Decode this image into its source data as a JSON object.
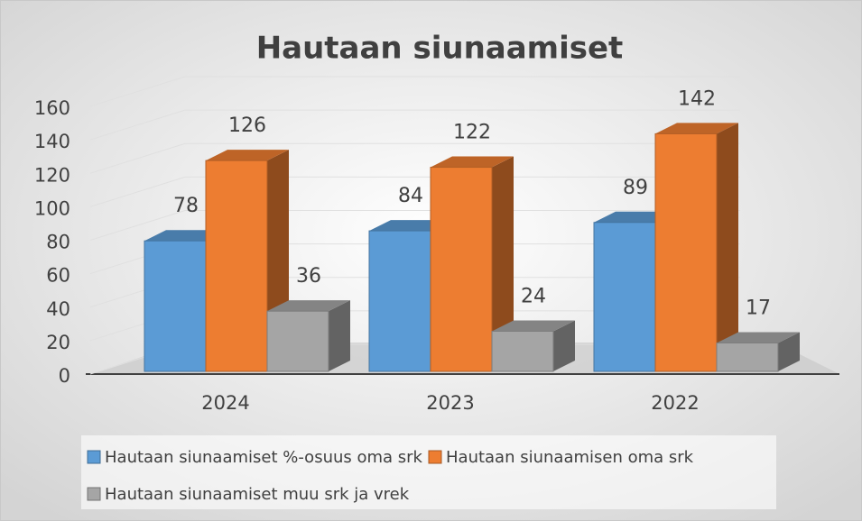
{
  "chart_data": {
    "type": "bar",
    "title": "Hautaan siunaamiset",
    "categories": [
      "2024",
      "2023",
      "2022"
    ],
    "series": [
      {
        "name": "Hautaan siunaamiset %-osuus oma srk",
        "color": "#5b9bd5",
        "values": [
          78,
          84,
          89
        ]
      },
      {
        "name": "Hautaan siunaamisen oma srk",
        "color": "#ed7d31",
        "values": [
          126,
          122,
          142
        ]
      },
      {
        "name": "Hautaan siunaamiset muu srk ja vrek",
        "color": "#a5a5a5",
        "values": [
          36,
          24,
          17
        ]
      }
    ],
    "ylim": [
      0,
      160
    ],
    "yticks": [
      0,
      20,
      40,
      60,
      80,
      100,
      120,
      140,
      160
    ],
    "grid": true,
    "legend": "bottom"
  }
}
